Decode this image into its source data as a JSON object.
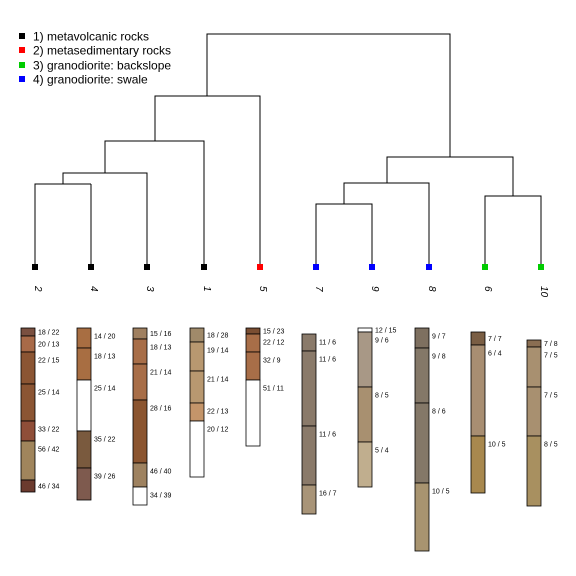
{
  "legend": [
    {
      "label": "1) metavolcanic rocks",
      "color": "#000000"
    },
    {
      "label": "2) metasedimentary rocks",
      "color": "#FF0000"
    },
    {
      "label": "3) granodiorite: backslope",
      "color": "#00CC00"
    },
    {
      "label": "4) granodiorite: swale",
      "color": "#0000FF"
    }
  ],
  "leaves": [
    {
      "label": "2",
      "group": 1
    },
    {
      "label": "4",
      "group": 1
    },
    {
      "label": "3",
      "group": 1
    },
    {
      "label": "1",
      "group": 1
    },
    {
      "label": "5",
      "group": 2
    },
    {
      "label": "7",
      "group": 4
    },
    {
      "label": "9",
      "group": 4
    },
    {
      "label": "8",
      "group": 4
    },
    {
      "label": "6",
      "group": 3
    },
    {
      "label": "10",
      "group": 3
    }
  ],
  "profiles": [
    {
      "leaf": "2",
      "horizons": [
        {
          "label": "18 / 22",
          "color": "#7A5040",
          "depth": 8
        },
        {
          "label": "20 / 13",
          "color": "#A86A48",
          "depth": 16
        },
        {
          "label": "22 / 15",
          "color": "#8B5533",
          "depth": 32
        },
        {
          "label": "25 / 14",
          "color": "#8B5533",
          "depth": 37
        },
        {
          "label": "33 / 22",
          "color": "#8F4E38",
          "depth": 20
        },
        {
          "label": "56 / 42",
          "color": "#A0855C",
          "depth": 39
        },
        {
          "label": "46 / 34",
          "color": "#6B3A2E",
          "depth": 12
        }
      ]
    },
    {
      "leaf": "4",
      "horizons": [
        {
          "label": "14 / 20",
          "color": "#A86E42",
          "depth": 20
        },
        {
          "label": "18 / 13",
          "color": "#A86E42",
          "depth": 32
        },
        {
          "label": "25 / 14",
          "color": "#FFFFFF",
          "depth": 51
        },
        {
          "label": "35 / 22",
          "color": "#7A5A3E",
          "depth": 37
        },
        {
          "label": "39 / 26",
          "color": "#7E5A4E",
          "depth": 32
        }
      ]
    },
    {
      "leaf": "3",
      "horizons": [
        {
          "label": "15 / 16",
          "color": "#A08060",
          "depth": 11
        },
        {
          "label": "18 / 13",
          "color": "#A86E48",
          "depth": 25
        },
        {
          "label": "21 / 14",
          "color": "#A86E48",
          "depth": 36
        },
        {
          "label": "28 / 16",
          "color": "#8B5530",
          "depth": 63
        },
        {
          "label": "46 / 40",
          "color": "#9E8260",
          "depth": 24
        },
        {
          "label": "34 / 39",
          "color": "#FFFFFF",
          "depth": 18
        }
      ]
    },
    {
      "leaf": "1",
      "horizons": [
        {
          "label": "18 / 28",
          "color": "#A08A6A",
          "depth": 14
        },
        {
          "label": "19 / 14",
          "color": "#B89870",
          "depth": 29
        },
        {
          "label": "21 / 14",
          "color": "#B89870",
          "depth": 32
        },
        {
          "label": "22 / 13",
          "color": "#C4956A",
          "depth": 18
        },
        {
          "label": "20 / 12",
          "color": "#FFFFFF",
          "depth": 56
        }
      ]
    },
    {
      "leaf": "5",
      "horizons": [
        {
          "label": "15 / 23",
          "color": "#7A4E32",
          "depth": 6
        },
        {
          "label": "22 / 12",
          "color": "#A86E48",
          "depth": 18
        },
        {
          "label": "32 / 9",
          "color": "#A86E48",
          "depth": 28
        },
        {
          "label": "51 / 11",
          "color": "#FFFFFF",
          "depth": 66
        }
      ]
    },
    {
      "leaf": "7",
      "horizons": [
        {
          "label": "11 / 6",
          "color": "#8A7A6A",
          "depth": 17
        },
        {
          "label": "11 / 6",
          "color": "#8A7A6A",
          "depth": 75
        },
        {
          "label": "11 / 6",
          "color": "#8A7A6A",
          "depth": 59
        },
        {
          "label": "16 / 7",
          "color": "#A89478",
          "depth": 29
        }
      ]
    },
    {
      "leaf": "9",
      "horizons": [
        {
          "label": "12 / 15",
          "color": "#FFFFFF",
          "depth": 4
        },
        {
          "label": "9 / 6",
          "color": "#A89886",
          "depth": 55
        },
        {
          "label": "8 / 5",
          "color": "#A89070",
          "depth": 55
        },
        {
          "label": "5 / 4",
          "color": "#C0AE8E",
          "depth": 45
        }
      ]
    },
    {
      "leaf": "8",
      "horizons": [
        {
          "label": "9 / 7",
          "color": "#7E7060",
          "depth": 20
        },
        {
          "label": "9 / 8",
          "color": "#847868",
          "depth": 55
        },
        {
          "label": "8 / 6",
          "color": "#847868",
          "depth": 80
        },
        {
          "label": "10 / 5",
          "color": "#A89470",
          "depth": 68
        }
      ]
    },
    {
      "leaf": "6",
      "horizons": [
        {
          "label": "7 / 7",
          "color": "#7A5E44",
          "depth": 13
        },
        {
          "label": "6 / 4",
          "color": "#A88E72",
          "depth": 91
        },
        {
          "label": "10 / 5",
          "color": "#A8884E",
          "depth": 57
        }
      ]
    },
    {
      "leaf": "10",
      "horizons": [
        {
          "label": "7 / 8",
          "color": "#8A6E52",
          "depth": 7
        },
        {
          "label": "7 / 5",
          "color": "#A89070",
          "depth": 40
        },
        {
          "label": "7 / 5",
          "color": "#A89070",
          "depth": 49
        },
        {
          "label": "8 / 5",
          "color": "#A89060",
          "depth": 70
        }
      ]
    }
  ]
}
